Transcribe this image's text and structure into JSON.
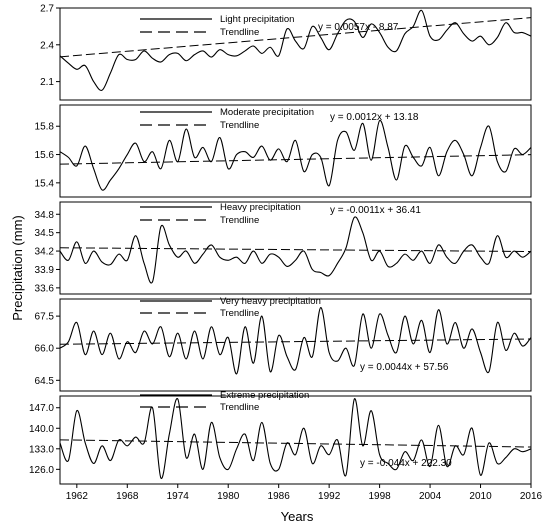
{
  "ylabel": "Precipitation (mm)",
  "xlabel": "Years",
  "x_ticks": [
    "1962",
    "1968",
    "1974",
    "1980",
    "1986",
    "1992",
    "1998",
    "2004",
    "2010",
    "2016"
  ],
  "chart_data": [
    {
      "type": "line",
      "title": "",
      "series": [
        {
          "name": "Light precipitation"
        },
        {
          "name": "Trendline"
        }
      ],
      "equation": "y  =  0.0057x  -  8.87",
      "slope": 0.0057,
      "intercept": -8.87,
      "ylim": [
        1.95,
        2.7
      ],
      "yticks": [
        2.1,
        2.4,
        2.7
      ],
      "ytick_labels": [
        "2.1",
        "2.4",
        "2.7"
      ],
      "x": [
        1960,
        1961,
        1962,
        1963,
        1964,
        1965,
        1966,
        1967,
        1968,
        1969,
        1970,
        1971,
        1972,
        1973,
        1974,
        1975,
        1976,
        1977,
        1978,
        1979,
        1980,
        1981,
        1982,
        1983,
        1984,
        1985,
        1986,
        1987,
        1988,
        1989,
        1990,
        1991,
        1992,
        1993,
        1994,
        1995,
        1996,
        1997,
        1998,
        1999,
        2000,
        2001,
        2002,
        2003,
        2004,
        2005,
        2006,
        2007,
        2008,
        2009,
        2010,
        2011,
        2012,
        2013,
        2014,
        2015,
        2016
      ],
      "values": [
        2.31,
        2.25,
        2.2,
        2.23,
        2.1,
        2.03,
        2.17,
        2.32,
        2.28,
        2.28,
        2.35,
        2.29,
        2.26,
        2.32,
        2.33,
        2.27,
        2.32,
        2.35,
        2.3,
        2.36,
        2.32,
        2.31,
        2.35,
        2.39,
        2.33,
        2.38,
        2.31,
        2.53,
        2.43,
        2.37,
        2.55,
        2.46,
        2.36,
        2.49,
        2.6,
        2.59,
        2.46,
        2.57,
        2.5,
        2.38,
        2.35,
        2.49,
        2.55,
        2.68,
        2.47,
        2.44,
        2.52,
        2.58,
        2.49,
        2.43,
        2.47,
        2.4,
        2.46,
        2.58,
        2.5,
        2.5,
        2.47
      ]
    },
    {
      "type": "line",
      "title": "",
      "series": [
        {
          "name": "Moderate precipitation"
        },
        {
          "name": "Trendline"
        }
      ],
      "equation": "y  =  0.0012x  +  13.18",
      "slope": 0.0012,
      "intercept": 13.18,
      "ylim": [
        15.3,
        15.95
      ],
      "yticks": [
        15.4,
        15.6,
        15.8
      ],
      "ytick_labels": [
        "15.4",
        "15.6",
        "15.8"
      ],
      "x": [
        1960,
        1961,
        1962,
        1963,
        1964,
        1965,
        1966,
        1967,
        1968,
        1969,
        1970,
        1971,
        1972,
        1973,
        1974,
        1975,
        1976,
        1977,
        1978,
        1979,
        1980,
        1981,
        1982,
        1983,
        1984,
        1985,
        1986,
        1987,
        1988,
        1989,
        1990,
        1991,
        1992,
        1993,
        1994,
        1995,
        1996,
        1997,
        1998,
        1999,
        2000,
        2001,
        2002,
        2003,
        2004,
        2005,
        2006,
        2007,
        2008,
        2009,
        2010,
        2011,
        2012,
        2013,
        2014,
        2015,
        2016
      ],
      "values": [
        15.62,
        15.58,
        15.52,
        15.66,
        15.5,
        15.35,
        15.42,
        15.5,
        15.6,
        15.68,
        15.55,
        15.62,
        15.5,
        15.7,
        15.55,
        15.78,
        15.58,
        15.65,
        15.55,
        15.72,
        15.5,
        15.6,
        15.62,
        15.58,
        15.66,
        15.56,
        15.64,
        15.55,
        15.7,
        15.48,
        15.6,
        15.58,
        15.38,
        15.7,
        15.76,
        15.63,
        15.82,
        15.56,
        15.84,
        15.65,
        15.42,
        15.66,
        15.58,
        15.52,
        15.65,
        15.45,
        15.62,
        15.7,
        15.6,
        15.45,
        15.65,
        15.8,
        15.55,
        15.48,
        15.64,
        15.6,
        15.65
      ]
    },
    {
      "type": "line",
      "title": "",
      "series": [
        {
          "name": "Heavy precipitation"
        },
        {
          "name": "Trendline"
        }
      ],
      "equation": "y  =  -0.0011x  +  36.41",
      "slope": -0.0011,
      "intercept": 36.41,
      "ylim": [
        33.5,
        35.0
      ],
      "yticks": [
        33.6,
        33.9,
        34.2,
        34.5,
        34.8
      ],
      "ytick_labels": [
        "33.6",
        "33.9",
        "34.2",
        "34.5",
        "34.8"
      ],
      "x": [
        1960,
        1961,
        1962,
        1963,
        1964,
        1965,
        1966,
        1967,
        1968,
        1969,
        1970,
        1971,
        1972,
        1973,
        1974,
        1975,
        1976,
        1977,
        1978,
        1979,
        1980,
        1981,
        1982,
        1983,
        1984,
        1985,
        1986,
        1987,
        1988,
        1989,
        1990,
        1991,
        1992,
        1993,
        1994,
        1995,
        1996,
        1997,
        1998,
        1999,
        2000,
        2001,
        2002,
        2003,
        2004,
        2005,
        2006,
        2007,
        2008,
        2009,
        2010,
        2011,
        2012,
        2013,
        2014,
        2015,
        2016
      ],
      "values": [
        34.2,
        34.05,
        34.35,
        34.0,
        34.2,
        34.02,
        33.98,
        34.15,
        34.05,
        34.45,
        34.0,
        33.7,
        34.6,
        34.3,
        34.1,
        34.2,
        34.0,
        34.15,
        34.3,
        34.1,
        34.05,
        34.1,
        34.0,
        34.2,
        34.0,
        34.15,
        34.1,
        33.95,
        34.05,
        34.2,
        33.9,
        33.85,
        33.8,
        34.0,
        34.25,
        34.75,
        34.5,
        34.05,
        34.2,
        33.95,
        34.0,
        34.15,
        34.05,
        34.2,
        34.0,
        34.3,
        34.1,
        34.0,
        34.2,
        34.3,
        34.1,
        34.0,
        34.45,
        34.1,
        34.2,
        34.1,
        34.2
      ]
    },
    {
      "type": "line",
      "title": "",
      "series": [
        {
          "name": "Very heavy precipitation"
        },
        {
          "name": "Trendline"
        }
      ],
      "equation": "y   =   0.0044x   +   57.56",
      "slope": 0.0044,
      "intercept": 57.56,
      "ylim": [
        64.0,
        68.3
      ],
      "yticks": [
        64.5,
        66.0,
        67.5
      ],
      "ytick_labels": [
        "64.5",
        "66.0",
        "67.5"
      ],
      "x": [
        1960,
        1961,
        1962,
        1963,
        1964,
        1965,
        1966,
        1967,
        1968,
        1969,
        1970,
        1971,
        1972,
        1973,
        1974,
        1975,
        1976,
        1977,
        1978,
        1979,
        1980,
        1981,
        1982,
        1983,
        1984,
        1985,
        1986,
        1987,
        1988,
        1989,
        1990,
        1991,
        1992,
        1993,
        1994,
        1995,
        1996,
        1997,
        1998,
        1999,
        2000,
        2001,
        2002,
        2003,
        2004,
        2005,
        2006,
        2007,
        2008,
        2009,
        2010,
        2011,
        2012,
        2013,
        2014,
        2015,
        2016
      ],
      "values": [
        66.0,
        66.3,
        67.2,
        65.7,
        66.8,
        65.7,
        66.7,
        65.5,
        66.3,
        65.8,
        66.8,
        66.2,
        67.0,
        65.6,
        66.7,
        65.5,
        66.8,
        65.5,
        67.0,
        65.7,
        66.5,
        64.8,
        67.0,
        65.3,
        67.5,
        64.9,
        66.6,
        65.6,
        65.0,
        66.5,
        65.6,
        67.9,
        65.8,
        65.4,
        66.0,
        65.2,
        67.6,
        66.0,
        67.6,
        66.6,
        65.8,
        67.5,
        66.2,
        67.3,
        65.8,
        67.8,
        66.2,
        67.2,
        66.0,
        66.9,
        65.8,
        64.9,
        67.2,
        65.9,
        66.7,
        66.1,
        66.5
      ]
    },
    {
      "type": "line",
      "title": "",
      "series": [
        {
          "name": "Extreme precipitation"
        },
        {
          "name": "Trendline"
        }
      ],
      "equation": "y   =   -0.044x   +   222.30",
      "slope": -0.044,
      "intercept": 222.3,
      "ylim": [
        121.0,
        151.0
      ],
      "yticks": [
        126.0,
        133.0,
        140.0,
        147.0
      ],
      "ytick_labels": [
        "126.0",
        "133.0",
        "140.0",
        "147.0"
      ],
      "x": [
        1960,
        1961,
        1962,
        1963,
        1964,
        1965,
        1966,
        1967,
        1968,
        1969,
        1970,
        1971,
        1972,
        1973,
        1974,
        1975,
        1976,
        1977,
        1978,
        1979,
        1980,
        1981,
        1982,
        1983,
        1984,
        1985,
        1986,
        1987,
        1988,
        1989,
        1990,
        1991,
        1992,
        1993,
        1994,
        1995,
        1996,
        1997,
        1998,
        1999,
        2000,
        2001,
        2002,
        2003,
        2004,
        2005,
        2006,
        2007,
        2008,
        2009,
        2010,
        2011,
        2012,
        2013,
        2014,
        2015,
        2016
      ],
      "values": [
        135.0,
        129.0,
        146.0,
        135.0,
        128.0,
        134.0,
        129.0,
        136.0,
        134.0,
        137.0,
        135.0,
        147.0,
        123.0,
        138.0,
        150.0,
        130.0,
        138.0,
        126.0,
        142.0,
        130.0,
        126.0,
        133.0,
        138.0,
        129.0,
        142.0,
        128.0,
        126.0,
        135.0,
        131.0,
        140.0,
        128.0,
        134.0,
        131.0,
        136.0,
        124.0,
        150.0,
        134.0,
        146.0,
        131.0,
        128.0,
        126.0,
        132.0,
        129.0,
        136.0,
        127.0,
        141.0,
        127.0,
        134.0,
        131.0,
        140.0,
        124.0,
        135.0,
        128.0,
        130.0,
        133.0,
        132.0,
        133.0
      ]
    }
  ]
}
